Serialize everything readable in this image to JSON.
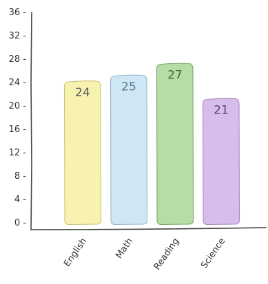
{
  "chart_data": {
    "type": "bar",
    "categories": [
      "English",
      "Math",
      "Reading",
      "Science"
    ],
    "values": [
      24,
      25,
      27,
      21
    ],
    "ylim": [
      0,
      36
    ],
    "yticks": [
      0,
      4,
      8,
      12,
      16,
      20,
      24,
      28,
      32,
      36
    ],
    "ytick_labels": [
      "0 -",
      "4 -",
      "8 -",
      "12 -",
      "16 -",
      "20 -",
      "24 -",
      "28 -",
      "32 -",
      "36 -"
    ],
    "value_labels": [
      "24",
      "25",
      "27",
      "21"
    ],
    "title": "",
    "xlabel": "",
    "ylabel": "",
    "grid": false,
    "bar_fills": [
      "#f7f2b0",
      "#cfe6f4",
      "#b7dca6",
      "#d7bdeb"
    ],
    "bar_strokes": [
      "#c9c27a",
      "#94b8cc",
      "#7aa76a",
      "#a588bf"
    ],
    "value_label_colors": [
      "#555555",
      "#4f7d91",
      "#3f6a3a",
      "#5a3f73"
    ]
  }
}
